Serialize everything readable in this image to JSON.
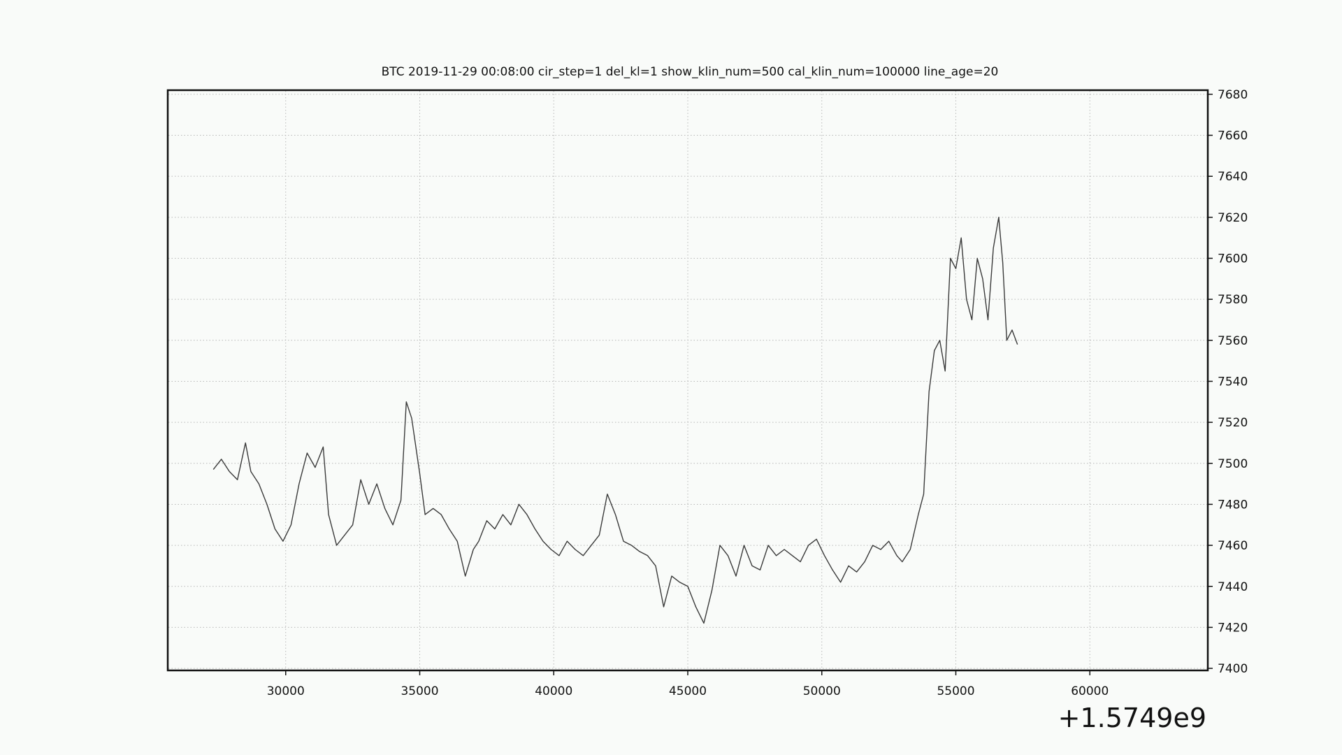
{
  "chart_data": {
    "type": "line",
    "title": "BTC    2019-11-29 00:08:00 cir_step=1 del_kl=1 show_klin_num=500 cal_klin_num=100000 line_age=20",
    "xlabel": "",
    "ylabel": "",
    "x_offset_label": "+1.5749e9",
    "xlim": [
      25600,
      64400
    ],
    "ylim": [
      7399,
      7682
    ],
    "x_ticks": [
      30000,
      35000,
      40000,
      45000,
      50000,
      55000,
      60000
    ],
    "x_tick_labels": [
      "30000",
      "35000",
      "40000",
      "45000",
      "50000",
      "55000",
      "60000"
    ],
    "y_ticks": [
      7400,
      7420,
      7440,
      7460,
      7480,
      7500,
      7520,
      7540,
      7560,
      7580,
      7600,
      7620,
      7640,
      7660,
      7680
    ],
    "y_tick_labels": [
      "7400",
      "7420",
      "7440",
      "7460",
      "7480",
      "7500",
      "7520",
      "7540",
      "7560",
      "7580",
      "7600",
      "7620",
      "7640",
      "7660",
      "7680"
    ],
    "y_axis_side": "right",
    "grid": true,
    "colors": {
      "price": "#3a3a3a",
      "grid": "#b8b8b8",
      "background": "#f9fbf9",
      "frame": "#111111"
    },
    "series": [
      {
        "x": [
          27300,
          27600,
          27900,
          28200,
          28500,
          28700,
          29000,
          29300,
          29600,
          29900,
          30200,
          30500,
          30800,
          31100,
          31400,
          31600,
          31900,
          32200,
          32500,
          32800,
          33100,
          33400,
          33700,
          34000,
          34300,
          34500,
          34700,
          35000,
          35200,
          35500,
          35800,
          36100,
          36400,
          36700,
          37000,
          37200,
          37500,
          37800,
          38100,
          38400,
          38700,
          39000,
          39300,
          39600,
          39900,
          40200,
          40500,
          40800,
          41100,
          41400,
          41700,
          42000,
          42300,
          42600,
          42900,
          43200,
          43500,
          43800,
          44100,
          44400,
          44700,
          45000,
          45300,
          45600,
          45900,
          46200,
          46500,
          46800,
          47100,
          47400,
          47700,
          48000,
          48300,
          48600,
          48900,
          49200,
          49500,
          49800,
          50100,
          50400,
          50700,
          51000,
          51300,
          51600,
          51900,
          52200,
          52500,
          52800,
          53000,
          53300,
          53600,
          53800,
          54000,
          54200,
          54400,
          54600,
          54800,
          55000,
          55200,
          55400,
          55600,
          55800,
          56000,
          56200,
          56400,
          56600,
          56750,
          56900,
          57100,
          57300
        ],
        "y": [
          7497,
          7502,
          7496,
          7492,
          7510,
          7496,
          7490,
          7480,
          7468,
          7462,
          7470,
          7490,
          7505,
          7498,
          7508,
          7475,
          7460,
          7465,
          7470,
          7492,
          7480,
          7490,
          7478,
          7470,
          7482,
          7530,
          7522,
          7495,
          7475,
          7478,
          7475,
          7468,
          7462,
          7445,
          7458,
          7462,
          7472,
          7468,
          7475,
          7470,
          7480,
          7475,
          7468,
          7462,
          7458,
          7455,
          7462,
          7458,
          7455,
          7460,
          7465,
          7485,
          7475,
          7462,
          7460,
          7457,
          7455,
          7450,
          7430,
          7445,
          7442,
          7440,
          7430,
          7422,
          7438,
          7460,
          7455,
          7445,
          7460,
          7450,
          7448,
          7460,
          7455,
          7458,
          7455,
          7452,
          7460,
          7463,
          7455,
          7448,
          7442,
          7450,
          7447,
          7452,
          7460,
          7458,
          7462,
          7455,
          7452,
          7458,
          7475,
          7485,
          7535,
          7555,
          7560,
          7545,
          7600,
          7595,
          7610,
          7580,
          7570,
          7600,
          7590,
          7570,
          7605,
          7620,
          7598,
          7560,
          7565,
          7558
        ]
      }
    ]
  }
}
